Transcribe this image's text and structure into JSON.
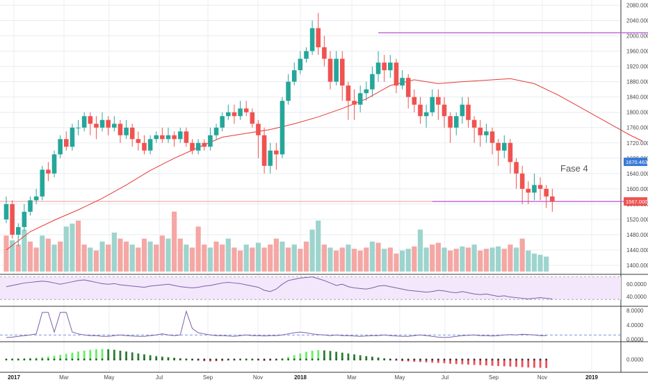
{
  "chart_data": [
    {
      "type": "candlestick",
      "panel": "price",
      "y_ticks": [
        "2080.000",
        "2040.000",
        "2000.000",
        "1960.000",
        "1920.000",
        "1880.000",
        "1840.000",
        "1800.000",
        "1760.000",
        "1720.000",
        "1680.000",
        "1640.000",
        "1600.000",
        "1560.000",
        "1520.000",
        "1480.000",
        "1440.000",
        "1400.000"
      ],
      "ylim": [
        1380,
        2090
      ],
      "x_ticks": [
        "2017",
        "Mar",
        "May",
        "Jul",
        "Sep",
        "Nov",
        "2018",
        "Mar",
        "May",
        "Jul",
        "Sep",
        "Nov",
        "2019"
      ],
      "bold_x_ticks": [
        "2017",
        "2018",
        "2019"
      ],
      "price_tags": [
        {
          "label": "1670.463",
          "value": 1670.5,
          "color": "#3a7bd5"
        },
        {
          "label": "1567.000",
          "value": 1567,
          "color": "#ef5350"
        }
      ],
      "annotation": "Fase 4",
      "horizontal_lines": [
        {
          "value": 2008,
          "from_week": 62,
          "to_week": 107,
          "color": "#c15bd6"
        },
        {
          "value": 1567,
          "from_week": 71,
          "to_week": 107,
          "color": "#c15bd6"
        }
      ],
      "last_price_line": {
        "value": 1567,
        "color": "#ef5350"
      },
      "moving_average": {
        "color": "#e53935",
        "points": [
          [
            0,
            1440
          ],
          [
            4,
            1488
          ],
          [
            8,
            1518
          ],
          [
            12,
            1545
          ],
          [
            16,
            1575
          ],
          [
            20,
            1610
          ],
          [
            24,
            1648
          ],
          [
            28,
            1680
          ],
          [
            32,
            1708
          ],
          [
            36,
            1735
          ],
          [
            40,
            1745
          ],
          [
            44,
            1755
          ],
          [
            48,
            1770
          ],
          [
            52,
            1788
          ],
          [
            56,
            1810
          ],
          [
            60,
            1835
          ],
          [
            64,
            1870
          ],
          [
            68,
            1885
          ],
          [
            72,
            1875
          ],
          [
            76,
            1880
          ],
          [
            80,
            1884
          ],
          [
            84,
            1888
          ],
          [
            88,
            1875
          ],
          [
            92,
            1845
          ],
          [
            96,
            1810
          ],
          [
            100,
            1775
          ],
          [
            104,
            1740
          ],
          [
            106,
            1725
          ]
        ]
      },
      "candles": [
        [
          1520,
          1560,
          1580,
          1510
        ],
        [
          1560,
          1480,
          1570,
          1470
        ],
        [
          1480,
          1500,
          1510,
          1450
        ],
        [
          1500,
          1540,
          1560,
          1490
        ],
        [
          1540,
          1570,
          1580,
          1530
        ],
        [
          1570,
          1580,
          1600,
          1560
        ],
        [
          1580,
          1650,
          1660,
          1570
        ],
        [
          1650,
          1640,
          1670,
          1620
        ],
        [
          1640,
          1690,
          1700,
          1630
        ],
        [
          1690,
          1730,
          1740,
          1680
        ],
        [
          1730,
          1710,
          1750,
          1700
        ],
        [
          1710,
          1760,
          1770,
          1700
        ],
        [
          1760,
          1760,
          1780,
          1740
        ],
        [
          1760,
          1790,
          1800,
          1750
        ],
        [
          1790,
          1770,
          1800,
          1740
        ],
        [
          1770,
          1760,
          1790,
          1730
        ],
        [
          1760,
          1780,
          1800,
          1750
        ],
        [
          1780,
          1760,
          1790,
          1740
        ],
        [
          1760,
          1770,
          1790,
          1750
        ],
        [
          1770,
          1740,
          1780,
          1720
        ],
        [
          1740,
          1760,
          1780,
          1730
        ],
        [
          1760,
          1730,
          1770,
          1710
        ],
        [
          1730,
          1720,
          1750,
          1700
        ],
        [
          1720,
          1700,
          1740,
          1690
        ],
        [
          1700,
          1730,
          1740,
          1690
        ],
        [
          1730,
          1740,
          1750,
          1720
        ],
        [
          1740,
          1730,
          1760,
          1720
        ],
        [
          1730,
          1740,
          1760,
          1720
        ],
        [
          1740,
          1730,
          1750,
          1710
        ],
        [
          1730,
          1750,
          1760,
          1720
        ],
        [
          1750,
          1720,
          1760,
          1710
        ],
        [
          1720,
          1700,
          1730,
          1690
        ],
        [
          1700,
          1720,
          1730,
          1690
        ],
        [
          1720,
          1710,
          1730,
          1700
        ],
        [
          1710,
          1740,
          1760,
          1700
        ],
        [
          1740,
          1760,
          1770,
          1730
        ],
        [
          1760,
          1790,
          1800,
          1750
        ],
        [
          1790,
          1800,
          1820,
          1780
        ],
        [
          1800,
          1790,
          1820,
          1770
        ],
        [
          1790,
          1810,
          1830,
          1780
        ],
        [
          1810,
          1800,
          1830,
          1790
        ],
        [
          1800,
          1770,
          1810,
          1760
        ],
        [
          1770,
          1740,
          1780,
          1680
        ],
        [
          1740,
          1660,
          1760,
          1640
        ],
        [
          1660,
          1700,
          1720,
          1640
        ],
        [
          1700,
          1690,
          1720,
          1650
        ],
        [
          1690,
          1830,
          1840,
          1680
        ],
        [
          1830,
          1880,
          1900,
          1820
        ],
        [
          1880,
          1910,
          1930,
          1870
        ],
        [
          1910,
          1940,
          1960,
          1900
        ],
        [
          1940,
          1960,
          1970,
          1930
        ],
        [
          1960,
          2020,
          2040,
          1950
        ],
        [
          2020,
          1970,
          2060,
          1950
        ],
        [
          1970,
          1940,
          2000,
          1920
        ],
        [
          1940,
          1880,
          1960,
          1860
        ],
        [
          1880,
          1940,
          1960,
          1870
        ],
        [
          1940,
          1870,
          1960,
          1830
        ],
        [
          1870,
          1830,
          1880,
          1780
        ],
        [
          1830,
          1820,
          1860,
          1780
        ],
        [
          1820,
          1850,
          1870,
          1800
        ],
        [
          1850,
          1860,
          1880,
          1830
        ],
        [
          1860,
          1900,
          1920,
          1840
        ],
        [
          1900,
          1930,
          1960,
          1880
        ],
        [
          1930,
          1910,
          1950,
          1880
        ],
        [
          1910,
          1930,
          1950,
          1890
        ],
        [
          1930,
          1870,
          1940,
          1850
        ],
        [
          1870,
          1890,
          1910,
          1860
        ],
        [
          1890,
          1840,
          1900,
          1810
        ],
        [
          1840,
          1820,
          1860,
          1800
        ],
        [
          1820,
          1790,
          1840,
          1770
        ],
        [
          1790,
          1800,
          1820,
          1760
        ],
        [
          1800,
          1840,
          1860,
          1790
        ],
        [
          1840,
          1820,
          1860,
          1780
        ],
        [
          1820,
          1790,
          1840,
          1760
        ],
        [
          1790,
          1760,
          1800,
          1720
        ],
        [
          1760,
          1790,
          1800,
          1740
        ],
        [
          1790,
          1820,
          1840,
          1770
        ],
        [
          1820,
          1780,
          1840,
          1760
        ],
        [
          1780,
          1760,
          1790,
          1720
        ],
        [
          1760,
          1740,
          1780,
          1710
        ],
        [
          1740,
          1750,
          1770,
          1720
        ],
        [
          1750,
          1720,
          1760,
          1690
        ],
        [
          1720,
          1700,
          1730,
          1660
        ],
        [
          1700,
          1720,
          1740,
          1680
        ],
        [
          1720,
          1670,
          1730,
          1640
        ],
        [
          1670,
          1640,
          1680,
          1600
        ],
        [
          1640,
          1600,
          1660,
          1560
        ],
        [
          1600,
          1590,
          1620,
          1560
        ],
        [
          1590,
          1610,
          1640,
          1570
        ],
        [
          1610,
          1600,
          1630,
          1570
        ],
        [
          1600,
          1580,
          1610,
          1550
        ],
        [
          1580,
          1567,
          1600,
          1540
        ]
      ],
      "volume": [
        [
          60,
          0
        ],
        [
          52,
          1
        ],
        [
          45,
          0
        ],
        [
          70,
          1
        ],
        [
          50,
          0
        ],
        [
          40,
          0
        ],
        [
          60,
          1
        ],
        [
          55,
          0
        ],
        [
          45,
          1
        ],
        [
          50,
          0
        ],
        [
          75,
          1
        ],
        [
          80,
          1
        ],
        [
          85,
          0
        ],
        [
          45,
          0
        ],
        [
          40,
          1
        ],
        [
          35,
          0
        ],
        [
          50,
          1
        ],
        [
          45,
          0
        ],
        [
          65,
          1
        ],
        [
          55,
          0
        ],
        [
          50,
          0
        ],
        [
          45,
          1
        ],
        [
          40,
          0
        ],
        [
          55,
          0
        ],
        [
          50,
          1
        ],
        [
          45,
          0
        ],
        [
          60,
          0
        ],
        [
          55,
          1
        ],
        [
          100,
          0
        ],
        [
          55,
          0
        ],
        [
          45,
          1
        ],
        [
          40,
          0
        ],
        [
          75,
          0
        ],
        [
          45,
          0
        ],
        [
          40,
          1
        ],
        [
          50,
          0
        ],
        [
          45,
          0
        ],
        [
          55,
          1
        ],
        [
          40,
          0
        ],
        [
          35,
          0
        ],
        [
          45,
          1
        ],
        [
          40,
          0
        ],
        [
          48,
          1
        ],
        [
          40,
          0
        ],
        [
          45,
          0
        ],
        [
          55,
          0
        ],
        [
          50,
          1
        ],
        [
          40,
          0
        ],
        [
          45,
          1
        ],
        [
          38,
          0
        ],
        [
          50,
          0
        ],
        [
          70,
          1
        ],
        [
          85,
          1
        ],
        [
          45,
          0
        ],
        [
          40,
          1
        ],
        [
          35,
          0
        ],
        [
          40,
          0
        ],
        [
          45,
          1
        ],
        [
          38,
          0
        ],
        [
          35,
          0
        ],
        [
          40,
          0
        ],
        [
          50,
          1
        ],
        [
          48,
          0
        ],
        [
          38,
          1
        ],
        [
          40,
          0
        ],
        [
          30,
          0
        ],
        [
          35,
          1
        ],
        [
          38,
          1
        ],
        [
          42,
          0
        ],
        [
          70,
          1
        ],
        [
          40,
          1
        ],
        [
          45,
          0
        ],
        [
          48,
          0
        ],
        [
          40,
          1
        ],
        [
          35,
          0
        ],
        [
          38,
          0
        ],
        [
          42,
          1
        ],
        [
          40,
          0
        ],
        [
          45,
          1
        ],
        [
          35,
          0
        ],
        [
          38,
          0
        ],
        [
          40,
          1
        ],
        [
          42,
          1
        ],
        [
          38,
          0
        ],
        [
          45,
          0
        ],
        [
          40,
          1
        ],
        [
          55,
          0
        ],
        [
          35,
          1
        ],
        [
          30,
          1
        ],
        [
          28,
          1
        ],
        [
          25,
          1
        ]
      ]
    },
    {
      "type": "line",
      "panel": "indicator-1",
      "y_ticks": [
        "60.0000",
        "40.0000"
      ],
      "ylim": [
        25,
        75
      ],
      "band": [
        35,
        72
      ],
      "values": [
        56,
        58,
        60,
        62,
        63,
        64,
        65,
        64,
        62,
        60,
        62,
        64,
        66,
        67,
        65,
        63,
        61,
        60,
        61,
        59,
        58,
        57,
        56,
        55,
        57,
        58,
        59,
        60,
        58,
        56,
        55,
        54,
        55,
        57,
        58,
        60,
        62,
        63,
        62,
        61,
        59,
        57,
        55,
        50,
        48,
        52,
        60,
        66,
        68,
        70,
        71,
        72,
        69,
        66,
        62,
        58,
        60,
        56,
        54,
        53,
        52,
        54,
        57,
        58,
        56,
        54,
        52,
        50,
        49,
        48,
        47,
        48,
        50,
        49,
        47,
        46,
        48,
        46,
        44,
        43,
        44,
        42,
        40,
        41,
        39,
        38,
        37,
        36,
        37,
        38,
        37,
        36
      ]
    },
    {
      "type": "line",
      "panel": "indicator-2",
      "y_ticks": [
        "8.0000",
        "4.0000",
        "0.0000"
      ],
      "ylim": [
        -0.5,
        9
      ],
      "reference_line": 1.2,
      "values": [
        0.5,
        0.6,
        0.8,
        1.0,
        1.2,
        1.5,
        7.5,
        7.5,
        2.0,
        7.5,
        7.5,
        2.0,
        1.5,
        1.2,
        1.0,
        1.0,
        0.8,
        0.8,
        1.0,
        1.2,
        1.0,
        0.9,
        0.8,
        0.8,
        1.0,
        1.2,
        1.5,
        1.2,
        1.0,
        1.2,
        7.8,
        3.0,
        1.8,
        1.5,
        1.2,
        1.0,
        1.0,
        0.9,
        0.8,
        1.0,
        1.2,
        1.0,
        1.0,
        0.9,
        1.0,
        1.0,
        1.2,
        1.5,
        1.8,
        2.0,
        1.8,
        1.5,
        1.3,
        1.2,
        1.0,
        1.2,
        1.0,
        1.0,
        0.9,
        0.8,
        0.9,
        1.0,
        1.0,
        1.2,
        1.0,
        0.9,
        0.8,
        0.8,
        1.0,
        1.2,
        1.0,
        0.8,
        0.6,
        0.5,
        0.6,
        0.8,
        1.0,
        1.1,
        1.2,
        1.0,
        1.0,
        0.9,
        1.0,
        1.2,
        1.3,
        1.2,
        1.4,
        1.3,
        1.2,
        1.0,
        1.0
      ]
    },
    {
      "type": "histogram",
      "panel": "indicator-3",
      "y_ticks": [
        "0.0000"
      ],
      "ylim": [
        -4,
        6
      ],
      "values": [
        0.2,
        0.3,
        0.3,
        0.4,
        0.5,
        0.6,
        0.8,
        1.0,
        1.3,
        1.6,
        2.0,
        2.4,
        2.8,
        3.1,
        3.4,
        3.6,
        3.7,
        3.6,
        3.4,
        3.1,
        2.8,
        2.5,
        2.1,
        1.8,
        1.5,
        1.2,
        1.0,
        0.8,
        0.6,
        0.4,
        0.3,
        -0.2,
        -0.4,
        -0.6,
        -0.7,
        -0.6,
        -0.5,
        -0.3,
        -0.2,
        0.2,
        0.3,
        0.2,
        -0.3,
        -0.5,
        -0.4,
        -0.2,
        0.4,
        0.9,
        1.5,
        2.1,
        2.7,
        3.1,
        3.3,
        3.2,
        3.0,
        2.7,
        2.4,
        2.1,
        1.8,
        1.5,
        1.2,
        1.0,
        0.7,
        0.4,
        -0.2,
        -0.4,
        -0.6,
        -0.7,
        -0.8,
        -0.9,
        -1.0,
        -1.1,
        -1.2,
        -1.3,
        -1.5,
        -1.6,
        -1.7,
        -1.8,
        -1.9,
        -2.0,
        -2.1,
        -2.2,
        -2.3,
        -2.4,
        -2.5,
        -2.6,
        -2.7,
        -2.8,
        -2.9,
        -2.9,
        -3.0
      ]
    }
  ],
  "colors": {
    "up": "#26a69a",
    "down": "#ef5350",
    "volume_up": "#9dd4cd",
    "volume_down": "#f4a7a4",
    "indicator_line": "#7b5ea7",
    "band_fill": "#f3e7fb",
    "hist_up_strong": "#66ee66",
    "hist_up_weak": "#2e7d32",
    "hist_down": "#ef4f5a",
    "grid": "#e8ecf0"
  }
}
